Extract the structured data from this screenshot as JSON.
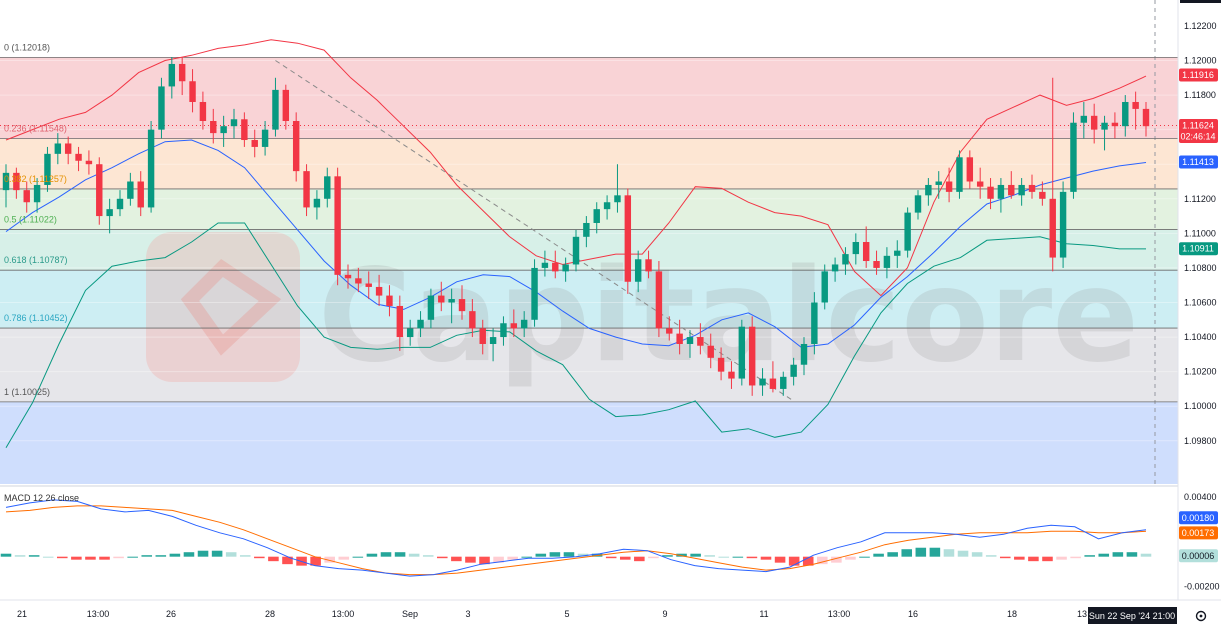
{
  "chart_data": [
    {
      "type": "candlestick",
      "title": "",
      "price_axis": {
        "ticks": [
          "1.12200",
          "1.12000",
          "1.11800",
          "1.11600",
          "1.11400",
          "1.11200",
          "1.11000",
          "1.10800",
          "1.10600",
          "1.10400",
          "1.10200",
          "1.10000",
          "1.09800"
        ],
        "range": [
          1.0955,
          1.1235
        ]
      },
      "time_axis": {
        "ticks": [
          "21",
          "13:00",
          "26",
          "28",
          "13:00",
          "Sep",
          "3",
          "5",
          "9",
          "11",
          "13:00",
          "16",
          "18",
          "13"
        ],
        "crosshair_label": "Sun 22 Sep '24   21:00"
      },
      "price_labels": {
        "upper_band": {
          "text": "1.11916",
          "value": 1.11916,
          "color": "#f23645"
        },
        "last_price": {
          "text": "1.11624",
          "value": 1.11624,
          "countdown": "02:46:14",
          "color": "#f23645"
        },
        "middle_band": {
          "text": "1.11413",
          "value": 1.11413,
          "color": "#2962ff"
        },
        "lower_band": {
          "text": "1.10911",
          "value": 1.10911,
          "color": "#089981"
        }
      },
      "fibonacci": [
        {
          "label": "0 (1.12018)",
          "value": 1.12018,
          "fill": "#f9d3d6",
          "label_color": "#555555"
        },
        {
          "label": "0.236 (1.11548)",
          "value": 1.11548,
          "fill": "#fde6d3",
          "label_color": "#e0626f"
        },
        {
          "label": "0.382 (1.11257)",
          "value": 1.11257,
          "fill": "#e3f2e0",
          "label_color": "#e59100"
        },
        {
          "label": "0.5 (1.11022)",
          "value": 1.11022,
          "fill": "#d7f0e8",
          "label_color": "#4caf50"
        },
        {
          "label": "0.618 (1.10787)",
          "value": 1.10787,
          "fill": "#cdeef3",
          "label_color": "#2a9a8a"
        },
        {
          "label": "0.786 (1.10452)",
          "value": 1.10452,
          "fill": "#e6e6ea",
          "label_color": "#2aa6c2"
        },
        {
          "label": "1 (1.10025)",
          "value": 1.10025,
          "fill": "#cfdefd",
          "label_color": "#555555"
        }
      ],
      "colors": {
        "up": "#089981",
        "down": "#f23645",
        "middle_band": "#2962ff",
        "upper_band": "#f23645",
        "lower_band": "#089981"
      },
      "candles": [
        [
          1.1125,
          1.114,
          1.1115,
          1.1135
        ],
        [
          1.1135,
          1.1138,
          1.112,
          1.1125
        ],
        [
          1.1125,
          1.113,
          1.1112,
          1.1118
        ],
        [
          1.1118,
          1.1132,
          1.1112,
          1.1128
        ],
        [
          1.1128,
          1.115,
          1.1124,
          1.1146
        ],
        [
          1.1146,
          1.1158,
          1.114,
          1.1152
        ],
        [
          1.1152,
          1.1156,
          1.114,
          1.1146
        ],
        [
          1.1146,
          1.115,
          1.1136,
          1.1142
        ],
        [
          1.1142,
          1.1148,
          1.1134,
          1.114
        ],
        [
          1.114,
          1.1144,
          1.1105,
          1.111
        ],
        [
          1.111,
          1.112,
          1.11,
          1.1114
        ],
        [
          1.1114,
          1.1125,
          1.111,
          1.112
        ],
        [
          1.112,
          1.1135,
          1.1116,
          1.113
        ],
        [
          1.113,
          1.1136,
          1.111,
          1.1115
        ],
        [
          1.1115,
          1.1165,
          1.1112,
          1.116
        ],
        [
          1.116,
          1.119,
          1.1155,
          1.1185
        ],
        [
          1.1185,
          1.1202,
          1.1178,
          1.1198
        ],
        [
          1.1198,
          1.1202,
          1.118,
          1.1188
        ],
        [
          1.1188,
          1.1195,
          1.117,
          1.1176
        ],
        [
          1.1176,
          1.1182,
          1.116,
          1.1165
        ],
        [
          1.1165,
          1.1172,
          1.1152,
          1.1158
        ],
        [
          1.1158,
          1.1168,
          1.115,
          1.1162
        ],
        [
          1.1162,
          1.1172,
          1.1155,
          1.1166
        ],
        [
          1.1166,
          1.117,
          1.115,
          1.1154
        ],
        [
          1.1154,
          1.116,
          1.1144,
          1.115
        ],
        [
          1.115,
          1.1165,
          1.1145,
          1.116
        ],
        [
          1.116,
          1.119,
          1.1156,
          1.1183
        ],
        [
          1.1183,
          1.1186,
          1.116,
          1.1165
        ],
        [
          1.1165,
          1.117,
          1.113,
          1.1136
        ],
        [
          1.1136,
          1.114,
          1.111,
          1.1115
        ],
        [
          1.1115,
          1.1125,
          1.1108,
          1.112
        ],
        [
          1.112,
          1.1138,
          1.1115,
          1.1133
        ],
        [
          1.1133,
          1.1138,
          1.107,
          1.1076
        ],
        [
          1.1076,
          1.1082,
          1.1068,
          1.1074
        ],
        [
          1.1074,
          1.108,
          1.1066,
          1.1071
        ],
        [
          1.1071,
          1.1078,
          1.1062,
          1.1069
        ],
        [
          1.1069,
          1.1076,
          1.1058,
          1.1064
        ],
        [
          1.1064,
          1.107,
          1.1052,
          1.1058
        ],
        [
          1.1058,
          1.1064,
          1.1032,
          1.104
        ],
        [
          1.104,
          1.105,
          1.1035,
          1.1045
        ],
        [
          1.1045,
          1.1055,
          1.104,
          1.105
        ],
        [
          1.105,
          1.1068,
          1.1045,
          1.1064
        ],
        [
          1.1064,
          1.1072,
          1.1055,
          1.106
        ],
        [
          1.106,
          1.1068,
          1.1048,
          1.1062
        ],
        [
          1.1062,
          1.107,
          1.105,
          1.1055
        ],
        [
          1.1055,
          1.1062,
          1.104,
          1.1045
        ],
        [
          1.1045,
          1.105,
          1.103,
          1.1036
        ],
        [
          1.1036,
          1.1045,
          1.1026,
          1.104
        ],
        [
          1.104,
          1.1052,
          1.1035,
          1.1048
        ],
        [
          1.1048,
          1.1056,
          1.104,
          1.1045
        ],
        [
          1.1045,
          1.1055,
          1.104,
          1.105
        ],
        [
          1.105,
          1.1085,
          1.1046,
          1.108
        ],
        [
          1.108,
          1.109,
          1.1075,
          1.1083
        ],
        [
          1.1083,
          1.109,
          1.1074,
          1.1078
        ],
        [
          1.1078,
          1.1086,
          1.1072,
          1.1082
        ],
        [
          1.1082,
          1.1102,
          1.1078,
          1.1098
        ],
        [
          1.1098,
          1.111,
          1.1092,
          1.1106
        ],
        [
          1.1106,
          1.1118,
          1.11,
          1.1114
        ],
        [
          1.1114,
          1.1122,
          1.1108,
          1.1118
        ],
        [
          1.1118,
          1.114,
          1.1112,
          1.1122
        ],
        [
          1.1122,
          1.1126,
          1.1065,
          1.1072
        ],
        [
          1.1072,
          1.109,
          1.1066,
          1.1085
        ],
        [
          1.1085,
          1.109,
          1.1074,
          1.1078
        ],
        [
          1.1078,
          1.1084,
          1.104,
          1.1045
        ],
        [
          1.1045,
          1.1052,
          1.1038,
          1.1042
        ],
        [
          1.1042,
          1.105,
          1.103,
          1.1036
        ],
        [
          1.1036,
          1.1044,
          1.1028,
          1.104
        ],
        [
          1.104,
          1.1048,
          1.103,
          1.1035
        ],
        [
          1.1035,
          1.1042,
          1.1022,
          1.1028
        ],
        [
          1.1028,
          1.1034,
          1.1015,
          1.102
        ],
        [
          1.102,
          1.1026,
          1.101,
          1.1016
        ],
        [
          1.1016,
          1.105,
          1.1012,
          1.1046
        ],
        [
          1.1046,
          1.1052,
          1.1006,
          1.1012
        ],
        [
          1.1012,
          1.1022,
          1.1006,
          1.1016
        ],
        [
          1.1016,
          1.1026,
          1.1008,
          1.101
        ],
        [
          1.101,
          1.102,
          1.1006,
          1.1017
        ],
        [
          1.1017,
          1.1028,
          1.1012,
          1.1024
        ],
        [
          1.1024,
          1.104,
          1.1018,
          1.1036
        ],
        [
          1.1036,
          1.1066,
          1.103,
          1.106
        ],
        [
          1.106,
          1.1082,
          1.1056,
          1.1078
        ],
        [
          1.1078,
          1.1086,
          1.1072,
          1.1082
        ],
        [
          1.1082,
          1.1092,
          1.1076,
          1.1088
        ],
        [
          1.1088,
          1.11,
          1.1082,
          1.1095
        ],
        [
          1.1095,
          1.1104,
          1.108,
          1.1084
        ],
        [
          1.1084,
          1.109,
          1.1076,
          1.108
        ],
        [
          1.108,
          1.1092,
          1.1074,
          1.1087
        ],
        [
          1.1087,
          1.1096,
          1.108,
          1.109
        ],
        [
          1.109,
          1.1115,
          1.1086,
          1.1112
        ],
        [
          1.1112,
          1.1125,
          1.1108,
          1.1122
        ],
        [
          1.1122,
          1.1132,
          1.1116,
          1.1128
        ],
        [
          1.1128,
          1.1136,
          1.112,
          1.113
        ],
        [
          1.113,
          1.1138,
          1.1118,
          1.1124
        ],
        [
          1.1124,
          1.1148,
          1.112,
          1.1144
        ],
        [
          1.1144,
          1.1148,
          1.1126,
          1.113
        ],
        [
          1.113,
          1.1138,
          1.112,
          1.1127
        ],
        [
          1.1127,
          1.1132,
          1.1114,
          1.112
        ],
        [
          1.112,
          1.1132,
          1.1112,
          1.1128
        ],
        [
          1.1128,
          1.1136,
          1.112,
          1.1122
        ],
        [
          1.1122,
          1.1132,
          1.1116,
          1.1128
        ],
        [
          1.1128,
          1.1134,
          1.112,
          1.1124
        ],
        [
          1.1124,
          1.113,
          1.1116,
          1.112
        ],
        [
          1.112,
          1.119,
          1.1078,
          1.1086
        ],
        [
          1.1086,
          1.113,
          1.108,
          1.1124
        ],
        [
          1.1124,
          1.117,
          1.112,
          1.1164
        ],
        [
          1.1164,
          1.1176,
          1.1155,
          1.1168
        ],
        [
          1.1168,
          1.1175,
          1.1152,
          1.116
        ],
        [
          1.116,
          1.1168,
          1.1148,
          1.1164
        ],
        [
          1.1164,
          1.117,
          1.1155,
          1.1162
        ],
        [
          1.1162,
          1.118,
          1.1156,
          1.1176
        ],
        [
          1.1176,
          1.1182,
          1.116,
          1.1172
        ],
        [
          1.1172,
          1.1176,
          1.1156,
          1.1162
        ]
      ],
      "bollinger": {
        "upper": [
          1.1154,
          1.116,
          1.1166,
          1.117,
          1.118,
          1.1193,
          1.12,
          1.1203,
          1.1207,
          1.1209,
          1.1212,
          1.121,
          1.1206,
          1.119,
          1.1177,
          1.1162,
          1.1147,
          1.1128,
          1.1113,
          1.1098,
          1.1087,
          1.1082,
          1.1085,
          1.1088,
          1.1088,
          1.1106,
          1.1127,
          1.1126,
          1.1118,
          1.1112,
          1.111,
          1.1105,
          1.1078,
          1.1064,
          1.108,
          1.1118,
          1.1147,
          1.1166,
          1.1173,
          1.118,
          1.1174,
          1.1178,
          1.1184,
          1.1191
        ],
        "middle": [
          1.1101,
          1.1112,
          1.1121,
          1.1131,
          1.1138,
          1.1146,
          1.1153,
          1.1154,
          1.1148,
          1.1138,
          1.112,
          1.1102,
          1.1084,
          1.107,
          1.1059,
          1.1056,
          1.1063,
          1.1072,
          1.1076,
          1.1075,
          1.1066,
          1.1055,
          1.1045,
          1.104,
          1.1036,
          1.1035,
          1.1041,
          1.105,
          1.1054,
          1.1046,
          1.1034,
          1.1036,
          1.1047,
          1.1063,
          1.1075,
          1.1089,
          1.1104,
          1.1117,
          1.1122,
          1.1128,
          1.1132,
          1.1136,
          1.1139,
          1.1141
        ],
        "lower": [
          1.0976,
          1.1002,
          1.1036,
          1.1067,
          1.1081,
          1.1084,
          1.1086,
          1.1095,
          1.1106,
          1.1106,
          1.1082,
          1.1058,
          1.104,
          1.1034,
          1.1033,
          1.1034,
          1.1034,
          1.1041,
          1.1044,
          1.1043,
          1.1032,
          1.1024,
          1.1004,
          1.0994,
          1.0995,
          1.0998,
          1.1003,
          1.0985,
          1.0987,
          1.0982,
          1.0985,
          1.1001,
          1.1029,
          1.1054,
          1.1071,
          1.1081,
          1.1086,
          1.1096,
          1.1097,
          1.1098,
          1.1094,
          1.1093,
          1.1091,
          1.1091
        ]
      },
      "annotation": "trend-line"
    },
    {
      "type": "line+histogram",
      "legend": "MACD 12 26 close",
      "ylim": [
        -0.0027,
        0.0046
      ],
      "ticks": [
        "0.00400",
        "-0.00200"
      ],
      "price_labels": {
        "macd": {
          "text": "0.00180",
          "value": 0.0018,
          "color": "#2962ff"
        },
        "signal": {
          "text": "0.00173",
          "value": 0.00173,
          "color": "#ff6d00"
        },
        "histogram": {
          "text": "0.00006",
          "value": 6e-05,
          "color": "#b2dfdb"
        }
      },
      "macd": [
        0.0033,
        0.0036,
        0.0038,
        0.0037,
        0.0032,
        0.003,
        0.0031,
        0.0027,
        0.0021,
        0.0016,
        0.0012,
        0.0006,
        -0.0001,
        -0.0006,
        -0.0008,
        -0.0009,
        -0.0011,
        -0.0013,
        -0.0012,
        -0.0009,
        -0.0005,
        -0.0003,
        -0.0001,
        -0.0001,
        0.0,
        0.0002,
        0.0005,
        0.0004,
        -0.0002,
        -0.0006,
        -0.0008,
        -0.0009,
        -0.001,
        -0.0007,
        0.0001,
        0.0006,
        0.001,
        0.0016,
        0.0016,
        0.0016,
        0.0015,
        0.0013,
        0.0015,
        0.0019,
        0.0021,
        0.002,
        0.0012,
        0.0016,
        0.0018
      ],
      "signal": [
        0.003,
        0.0031,
        0.0033,
        0.0034,
        0.0034,
        0.0033,
        0.0032,
        0.0031,
        0.0027,
        0.0023,
        0.0018,
        0.0012,
        0.0006,
        0.0,
        -0.0004,
        -0.0008,
        -0.0011,
        -0.0012,
        -0.0012,
        -0.0011,
        -0.0009,
        -0.0007,
        -0.0005,
        -0.0003,
        -0.0001,
        0.0001,
        0.0003,
        0.0004,
        0.0002,
        -0.0001,
        -0.0004,
        -0.0007,
        -0.0009,
        -0.0008,
        -0.0005,
        -0.0001,
        0.0003,
        0.0008,
        0.0011,
        0.0013,
        0.0015,
        0.0016,
        0.0016,
        0.0016,
        0.0017,
        0.0017,
        0.0016,
        0.0016,
        0.0017
      ],
      "histogram": [
        0.0002,
        0.0001,
        0.0001,
        0.0,
        -0.0001,
        -0.0002,
        -0.0002,
        -0.0002,
        -0.0001,
        0.0,
        0.0001,
        0.0001,
        0.0002,
        0.0003,
        0.0004,
        0.0004,
        0.0003,
        0.0001,
        -0.0001,
        -0.0003,
        -0.0005,
        -0.0006,
        -0.0006,
        -0.0004,
        -0.0002,
        0.0,
        0.0002,
        0.0003,
        0.0003,
        0.0002,
        0.0001,
        -0.0001,
        -0.0003,
        -0.0004,
        -0.0005,
        -0.0004,
        -0.0002,
        0.0,
        0.0002,
        0.0003,
        0.0003,
        0.0002,
        0.0002,
        -0.0001,
        -0.0002,
        -0.0003,
        -0.0001,
        0.0001,
        0.0002,
        0.0002,
        0.0001,
        0.0,
        0.0,
        -0.0001,
        -0.0002,
        -0.0004,
        -0.0006,
        -0.0006,
        -0.0005,
        -0.0004,
        -0.0002,
        0.0,
        0.0002,
        0.0003,
        0.0005,
        0.0006,
        0.0006,
        0.0005,
        0.0004,
        0.0003,
        0.0001,
        -0.0001,
        -0.0002,
        -0.0003,
        -0.0003,
        -0.0002,
        -0.0001,
        0.0001,
        0.0002,
        0.0003,
        0.0003,
        0.0002
      ]
    }
  ],
  "watermark": {
    "brand": "Capitalcore"
  },
  "toolbar": {
    "settings_icon": "gear-icon"
  }
}
